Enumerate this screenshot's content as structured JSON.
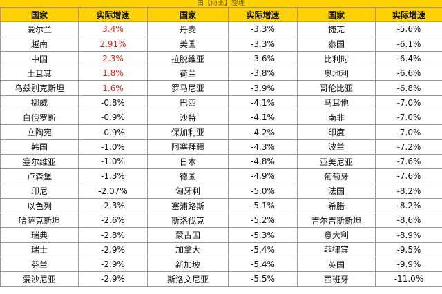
{
  "banner": "由【商王】整理",
  "columns": [
    "国家",
    "实际增速",
    "国家",
    "实际增速",
    "国家",
    "实际增速"
  ],
  "accent_color": "#ffd200",
  "positive_color": "#d9261c",
  "rows": [
    [
      {
        "country": "爱尔兰",
        "rate": "3.4%",
        "pos": true
      },
      {
        "country": "丹麦",
        "rate": "-3.3%"
      },
      {
        "country": "捷克",
        "rate": "-5.6%"
      }
    ],
    [
      {
        "country": "越南",
        "rate": "2.91%",
        "pos": true
      },
      {
        "country": "美国",
        "rate": "-3.3%"
      },
      {
        "country": "泰国",
        "rate": "-6.1%"
      }
    ],
    [
      {
        "country": "中国",
        "rate": "2.3%",
        "pos": true
      },
      {
        "country": "拉脱维亚",
        "rate": "-3.6%"
      },
      {
        "country": "比利时",
        "rate": "-6.4%"
      }
    ],
    [
      {
        "country": "土耳其",
        "rate": "1.8%",
        "pos": true
      },
      {
        "country": "荷兰",
        "rate": "-3.8%"
      },
      {
        "country": "奥地利",
        "rate": "-6.6%"
      }
    ],
    [
      {
        "country": "乌兹别克斯坦",
        "rate": "1.6%",
        "pos": true
      },
      {
        "country": "罗马尼亚",
        "rate": "-3.9%"
      },
      {
        "country": "哥伦比亚",
        "rate": "-6.8%"
      }
    ],
    [
      {
        "country": "挪威",
        "rate": "-0.8%"
      },
      {
        "country": "巴西",
        "rate": "-4.1%"
      },
      {
        "country": "马耳他",
        "rate": "-7.0%"
      }
    ],
    [
      {
        "country": "白俄罗斯",
        "rate": "-0.9%"
      },
      {
        "country": "沙特",
        "rate": "-4.1%"
      },
      {
        "country": "南非",
        "rate": "-7.0%"
      }
    ],
    [
      {
        "country": "立陶宛",
        "rate": "-0.9%"
      },
      {
        "country": "保加利亚",
        "rate": "-4.2%"
      },
      {
        "country": "印度",
        "rate": "-7.0%"
      }
    ],
    [
      {
        "country": "韩国",
        "rate": "-1.0%"
      },
      {
        "country": "阿塞拜疆",
        "rate": "-4.3%"
      },
      {
        "country": "波兰",
        "rate": "-7.2%"
      }
    ],
    [
      {
        "country": "塞尔维亚",
        "rate": "-1.0%"
      },
      {
        "country": "日本",
        "rate": "-4.8%"
      },
      {
        "country": "亚美尼亚",
        "rate": "-7.6%"
      }
    ],
    [
      {
        "country": "卢森堡",
        "rate": "-1.3%"
      },
      {
        "country": "德国",
        "rate": "-4.9%"
      },
      {
        "country": "葡萄牙",
        "rate": "-7.6%"
      }
    ],
    [
      {
        "country": "印尼",
        "rate": "-2.07%"
      },
      {
        "country": "匈牙利",
        "rate": "-5.0%"
      },
      {
        "country": "法国",
        "rate": "-8.2%"
      }
    ],
    [
      {
        "country": "以色列",
        "rate": "-2.3%"
      },
      {
        "country": "塞浦路斯",
        "rate": "-5.1%"
      },
      {
        "country": "希腊",
        "rate": "-8.2%"
      }
    ],
    [
      {
        "country": "哈萨克斯坦",
        "rate": "-2.6%"
      },
      {
        "country": "斯洛伐克",
        "rate": "-5.2%"
      },
      {
        "country": "吉尔吉斯斯坦",
        "rate": "-8.6%"
      }
    ],
    [
      {
        "country": "瑞典",
        "rate": "-2.8%"
      },
      {
        "country": "蒙古国",
        "rate": "-5.3%"
      },
      {
        "country": "意大利",
        "rate": "-8.9%"
      }
    ],
    [
      {
        "country": "瑞士",
        "rate": "-2.9%"
      },
      {
        "country": "加拿大",
        "rate": "-5.4%"
      },
      {
        "country": "菲律宾",
        "rate": "-9.5%"
      }
    ],
    [
      {
        "country": "芬兰",
        "rate": "-2.9%"
      },
      {
        "country": "新加坡",
        "rate": "-5.4%"
      },
      {
        "country": "英国",
        "rate": "-9.9%"
      }
    ],
    [
      {
        "country": "爱沙尼亚",
        "rate": "-2.9%"
      },
      {
        "country": "斯洛文尼亚",
        "rate": "-5.5%"
      },
      {
        "country": "西班牙",
        "rate": "-11.0%"
      }
    ]
  ]
}
